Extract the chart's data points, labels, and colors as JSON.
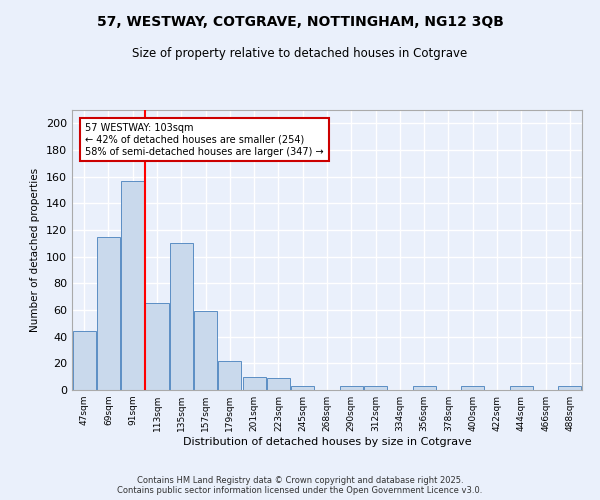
{
  "title": "57, WESTWAY, COTGRAVE, NOTTINGHAM, NG12 3QB",
  "subtitle": "Size of property relative to detached houses in Cotgrave",
  "xlabel": "Distribution of detached houses by size in Cotgrave",
  "ylabel": "Number of detached properties",
  "categories": [
    "47sqm",
    "69sqm",
    "91sqm",
    "113sqm",
    "135sqm",
    "157sqm",
    "179sqm",
    "201sqm",
    "223sqm",
    "245sqm",
    "268sqm",
    "290sqm",
    "312sqm",
    "334sqm",
    "356sqm",
    "378sqm",
    "400sqm",
    "422sqm",
    "444sqm",
    "466sqm",
    "488sqm"
  ],
  "values": [
    44,
    115,
    157,
    65,
    110,
    59,
    22,
    10,
    9,
    3,
    0,
    3,
    3,
    0,
    3,
    0,
    3,
    0,
    3,
    0,
    3
  ],
  "bar_color": "#c9d9ec",
  "bar_edge_color": "#5b8ec4",
  "red_line_index": 2,
  "annotation_text": "57 WESTWAY: 103sqm\n← 42% of detached houses are smaller (254)\n58% of semi-detached houses are larger (347) →",
  "annotation_box_color": "#ffffff",
  "annotation_box_edge": "#cc0000",
  "ylim": [
    0,
    210
  ],
  "yticks": [
    0,
    20,
    40,
    60,
    80,
    100,
    120,
    140,
    160,
    180,
    200
  ],
  "background_color": "#eaf0fb",
  "grid_color": "#ffffff",
  "footer_line1": "Contains HM Land Registry data © Crown copyright and database right 2025.",
  "footer_line2": "Contains public sector information licensed under the Open Government Licence v3.0."
}
